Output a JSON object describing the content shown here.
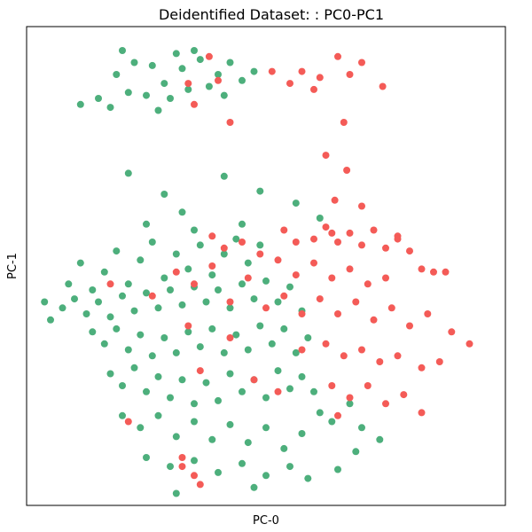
{
  "chart_data": {
    "type": "scatter",
    "title": "Deidentified Dataset: : PC0-PC1",
    "xlabel": "PC-0",
    "ylabel": "PC-1",
    "xlim": [
      -3.0,
      5.0
    ],
    "ylim": [
      -3.5,
      4.5
    ],
    "grid": false,
    "legend": "none",
    "ticks": "hidden",
    "series": [
      {
        "color": "#4daf7c",
        "points": [
          [
            -1.5,
            3.7
          ],
          [
            -1.2,
            3.9
          ],
          [
            -0.9,
            3.85
          ],
          [
            -0.7,
            3.55
          ],
          [
            -0.4,
            3.8
          ],
          [
            -0.1,
            3.95
          ],
          [
            0.2,
            3.7
          ],
          [
            0.4,
            3.9
          ],
          [
            0.6,
            3.6
          ],
          [
            -1.3,
            3.4
          ],
          [
            -1.0,
            3.35
          ],
          [
            -0.6,
            3.3
          ],
          [
            -0.3,
            3.45
          ],
          [
            0.05,
            3.5
          ],
          [
            -1.8,
            3.3
          ],
          [
            -2.1,
            3.2
          ],
          [
            -1.6,
            3.15
          ],
          [
            -0.8,
            3.1
          ],
          [
            0.3,
            3.35
          ],
          [
            0.8,
            3.75
          ],
          [
            -0.5,
            4.05
          ],
          [
            -1.4,
            4.1
          ],
          [
            -0.2,
            4.1
          ],
          [
            -1.3,
            2.05
          ],
          [
            -0.7,
            1.7
          ],
          [
            0.3,
            2.0
          ],
          [
            0.9,
            1.75
          ],
          [
            -0.4,
            1.4
          ],
          [
            -1.0,
            1.2
          ],
          [
            -0.2,
            1.1
          ],
          [
            0.6,
            1.2
          ],
          [
            1.5,
            1.55
          ],
          [
            1.9,
            1.3
          ],
          [
            -2.3,
            0.2
          ],
          [
            -2.1,
            0.55
          ],
          [
            -1.9,
            0.1
          ],
          [
            -1.7,
            0.4
          ],
          [
            -1.5,
            0.75
          ],
          [
            -1.3,
            0.2
          ],
          [
            -1.1,
            0.6
          ],
          [
            -0.9,
            0.9
          ],
          [
            -0.7,
            0.3
          ],
          [
            -0.5,
            0.7
          ],
          [
            -0.3,
            0.45
          ],
          [
            -0.1,
            0.85
          ],
          [
            0.1,
            0.35
          ],
          [
            0.3,
            0.7
          ],
          [
            0.5,
            0.95
          ],
          [
            0.7,
            0.55
          ],
          [
            0.9,
            0.85
          ],
          [
            -2.4,
            -0.2
          ],
          [
            -2.2,
            -0.05
          ],
          [
            -2.0,
            -0.3
          ],
          [
            -1.8,
            -0.1
          ],
          [
            -1.6,
            -0.35
          ],
          [
            -1.4,
            0.0
          ],
          [
            -1.2,
            -0.25
          ],
          [
            -1.0,
            0.05
          ],
          [
            -0.8,
            -0.2
          ],
          [
            -0.6,
            0.1
          ],
          [
            -0.4,
            -0.15
          ],
          [
            -0.2,
            0.15
          ],
          [
            0.0,
            -0.1
          ],
          [
            0.2,
            0.1
          ],
          [
            0.4,
            -0.2
          ],
          [
            0.6,
            0.2
          ],
          [
            0.8,
            -0.05
          ],
          [
            1.0,
            0.25
          ],
          [
            1.2,
            -0.1
          ],
          [
            1.4,
            0.15
          ],
          [
            1.6,
            -0.25
          ],
          [
            -1.9,
            -0.6
          ],
          [
            -1.7,
            -0.8
          ],
          [
            -1.5,
            -0.55
          ],
          [
            -1.3,
            -0.9
          ],
          [
            -1.1,
            -0.65
          ],
          [
            -0.9,
            -1.0
          ],
          [
            -0.7,
            -0.7
          ],
          [
            -0.5,
            -0.95
          ],
          [
            -0.3,
            -0.6
          ],
          [
            -0.1,
            -0.85
          ],
          [
            0.1,
            -0.55
          ],
          [
            0.3,
            -0.95
          ],
          [
            0.5,
            -0.65
          ],
          [
            0.7,
            -0.9
          ],
          [
            0.9,
            -0.5
          ],
          [
            1.1,
            -0.8
          ],
          [
            1.3,
            -0.55
          ],
          [
            1.5,
            -0.95
          ],
          [
            1.7,
            -0.7
          ],
          [
            -1.6,
            -1.3
          ],
          [
            -1.4,
            -1.5
          ],
          [
            -1.2,
            -1.2
          ],
          [
            -1.0,
            -1.6
          ],
          [
            -0.8,
            -1.35
          ],
          [
            -0.6,
            -1.7
          ],
          [
            -0.4,
            -1.4
          ],
          [
            -0.2,
            -1.8
          ],
          [
            0.0,
            -1.45
          ],
          [
            0.2,
            -1.75
          ],
          [
            0.4,
            -1.3
          ],
          [
            0.6,
            -1.6
          ],
          [
            0.8,
            -1.4
          ],
          [
            1.0,
            -1.7
          ],
          [
            1.2,
            -1.25
          ],
          [
            1.4,
            -1.55
          ],
          [
            1.6,
            -1.35
          ],
          [
            1.8,
            -1.6
          ],
          [
            -1.4,
            -2.0
          ],
          [
            -1.1,
            -2.2
          ],
          [
            -0.8,
            -2.0
          ],
          [
            -0.5,
            -2.35
          ],
          [
            -0.2,
            -2.1
          ],
          [
            0.1,
            -2.4
          ],
          [
            0.4,
            -2.15
          ],
          [
            0.7,
            -2.45
          ],
          [
            1.0,
            -2.2
          ],
          [
            1.3,
            -2.55
          ],
          [
            1.6,
            -2.3
          ],
          [
            -1.0,
            -2.7
          ],
          [
            -0.6,
            -2.85
          ],
          [
            -0.2,
            -2.75
          ],
          [
            0.2,
            -2.95
          ],
          [
            0.6,
            -2.8
          ],
          [
            1.0,
            -3.0
          ],
          [
            1.4,
            -2.85
          ],
          [
            2.5,
            -2.6
          ],
          [
            2.9,
            -2.4
          ],
          [
            2.1,
            -2.1
          ],
          [
            2.4,
            -1.8
          ],
          [
            -2.6,
            -0.4
          ],
          [
            -2.7,
            -0.1
          ],
          [
            -0.5,
            -3.3
          ],
          [
            0.8,
            -3.2
          ],
          [
            1.7,
            -3.05
          ],
          [
            2.2,
            -2.9
          ],
          [
            2.6,
            -2.2
          ],
          [
            1.9,
            -1.95
          ]
        ]
      },
      {
        "color": "#f45b57",
        "points": [
          [
            0.05,
            4.0
          ],
          [
            1.6,
            3.75
          ],
          [
            1.9,
            3.65
          ],
          [
            2.2,
            4.0
          ],
          [
            2.4,
            3.7
          ],
          [
            2.6,
            3.9
          ],
          [
            2.95,
            3.5
          ],
          [
            1.4,
            3.55
          ],
          [
            1.1,
            3.75
          ],
          [
            1.8,
            3.45
          ],
          [
            -0.3,
            3.55
          ],
          [
            0.2,
            3.6
          ],
          [
            -0.2,
            3.2
          ],
          [
            0.4,
            2.9
          ],
          [
            2.3,
            2.9
          ],
          [
            2.0,
            2.35
          ],
          [
            2.15,
            1.6
          ],
          [
            2.35,
            2.1
          ],
          [
            2.1,
            1.05
          ],
          [
            2.6,
            1.5
          ],
          [
            3.2,
            1.0
          ],
          [
            1.3,
            1.1
          ],
          [
            1.5,
            0.9
          ],
          [
            1.8,
            0.95
          ],
          [
            2.0,
            1.15
          ],
          [
            2.2,
            0.9
          ],
          [
            2.4,
            1.05
          ],
          [
            2.6,
            0.85
          ],
          [
            2.8,
            1.1
          ],
          [
            3.0,
            0.8
          ],
          [
            3.2,
            0.95
          ],
          [
            3.4,
            0.75
          ],
          [
            3.6,
            0.45
          ],
          [
            3.8,
            0.4
          ],
          [
            4.0,
            0.4
          ],
          [
            0.1,
            1.0
          ],
          [
            0.3,
            0.8
          ],
          [
            0.6,
            0.9
          ],
          [
            0.9,
            0.7
          ],
          [
            1.2,
            0.6
          ],
          [
            1.5,
            0.35
          ],
          [
            1.8,
            0.55
          ],
          [
            2.1,
            0.3
          ],
          [
            2.4,
            0.45
          ],
          [
            2.7,
            0.2
          ],
          [
            3.0,
            0.3
          ],
          [
            -0.9,
            0.0
          ],
          [
            -0.5,
            0.4
          ],
          [
            -0.2,
            0.2
          ],
          [
            0.1,
            0.5
          ],
          [
            0.4,
            -0.1
          ],
          [
            0.7,
            0.3
          ],
          [
            1.0,
            -0.2
          ],
          [
            1.3,
            0.0
          ],
          [
            1.6,
            -0.3
          ],
          [
            1.9,
            -0.05
          ],
          [
            2.2,
            -0.3
          ],
          [
            2.5,
            -0.1
          ],
          [
            2.8,
            -0.4
          ],
          [
            3.1,
            -0.2
          ],
          [
            3.4,
            -0.5
          ],
          [
            3.7,
            -0.3
          ],
          [
            4.1,
            -0.6
          ],
          [
            4.4,
            -0.8
          ],
          [
            -1.6,
            0.2
          ],
          [
            -0.3,
            -0.5
          ],
          [
            0.4,
            -0.7
          ],
          [
            1.6,
            -0.9
          ],
          [
            2.0,
            -0.8
          ],
          [
            2.3,
            -1.0
          ],
          [
            2.6,
            -0.9
          ],
          [
            2.9,
            -1.1
          ],
          [
            3.2,
            -1.0
          ],
          [
            3.6,
            -1.2
          ],
          [
            3.9,
            -1.1
          ],
          [
            -0.1,
            -1.25
          ],
          [
            0.8,
            -1.4
          ],
          [
            1.2,
            -1.6
          ],
          [
            2.1,
            -1.5
          ],
          [
            2.4,
            -1.7
          ],
          [
            2.7,
            -1.5
          ],
          [
            3.0,
            -1.8
          ],
          [
            3.3,
            -1.65
          ],
          [
            3.6,
            -1.95
          ],
          [
            2.2,
            -2.0
          ],
          [
            -1.3,
            -2.1
          ],
          [
            -0.4,
            -2.85
          ],
          [
            -0.2,
            -3.0
          ],
          [
            -0.1,
            -3.15
          ],
          [
            -0.4,
            -2.7
          ]
        ]
      }
    ]
  }
}
